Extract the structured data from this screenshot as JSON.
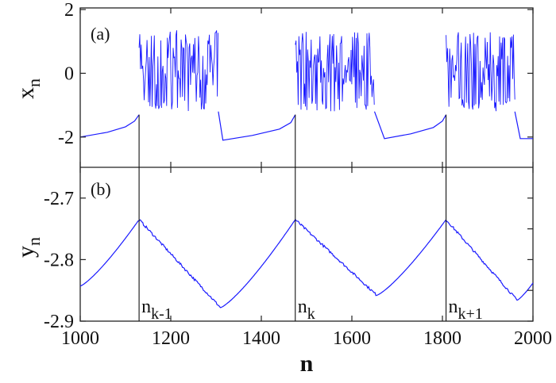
{
  "chart_data": [
    {
      "type": "line",
      "panel_label": "(a)",
      "ylabel": "x",
      "ylabel_sub": "n",
      "xlim": [
        1000,
        2000
      ],
      "ylim": [
        -2.95,
        2.05
      ],
      "yticks": [
        2,
        0,
        -2
      ],
      "ytick_labels": [
        "2",
        "0",
        "-2"
      ],
      "color": "#1a1aff",
      "quiet_phases": [
        {
          "x": [
            1000,
            1060,
            1100,
            1120,
            1130
          ],
          "y": [
            -2.0,
            -1.85,
            -1.68,
            -1.5,
            -1.3
          ]
        },
        {
          "x": [
            1305,
            1315,
            1380,
            1440,
            1465,
            1475
          ],
          "y": [
            -1.2,
            -2.1,
            -1.95,
            -1.75,
            -1.55,
            -1.3
          ]
        },
        {
          "x": [
            1650,
            1672,
            1730,
            1780,
            1800,
            1808
          ],
          "y": [
            -1.2,
            -2.05,
            -1.9,
            -1.7,
            -1.5,
            -1.3
          ]
        },
        {
          "x": [
            1960,
            1972,
            2000
          ],
          "y": [
            -1.2,
            -2.05,
            -2.05
          ]
        }
      ],
      "bursts": [
        {
          "start": 1130,
          "end": 1305,
          "min": -1.2,
          "max": 1.35
        },
        {
          "start": 1475,
          "end": 1650,
          "min": -1.2,
          "max": 1.3
        },
        {
          "start": 1808,
          "end": 1960,
          "min": -1.2,
          "max": 1.3
        }
      ]
    },
    {
      "type": "line",
      "panel_label": "(b)",
      "xlabel": "n",
      "ylabel": "y",
      "ylabel_sub": "n",
      "xlim": [
        1000,
        2000
      ],
      "ylim": [
        -2.9,
        -2.65
      ],
      "xticks": [
        1000,
        1200,
        1400,
        1600,
        1800,
        2000
      ],
      "xtick_labels": [
        "1000",
        "1200",
        "1400",
        "1600",
        "1800",
        "2000"
      ],
      "yticks": [
        -2.7,
        -2.8,
        -2.9
      ],
      "ytick_labels": [
        "-2.7",
        "-2.8",
        "-2.9"
      ],
      "color": "#1a1aff",
      "x": [
        1000,
        1130,
        1310,
        1475,
        1655,
        1808,
        1965,
        2000
      ],
      "y": [
        -2.843,
        -2.735,
        -2.878,
        -2.735,
        -2.858,
        -2.735,
        -2.866,
        -2.838
      ]
    }
  ],
  "markers": [
    {
      "n": 1130,
      "label": "n",
      "sub": "k-1"
    },
    {
      "n": 1475,
      "label": "n",
      "sub": "k"
    },
    {
      "n": 1808,
      "label": "n",
      "sub": "k+1"
    }
  ]
}
